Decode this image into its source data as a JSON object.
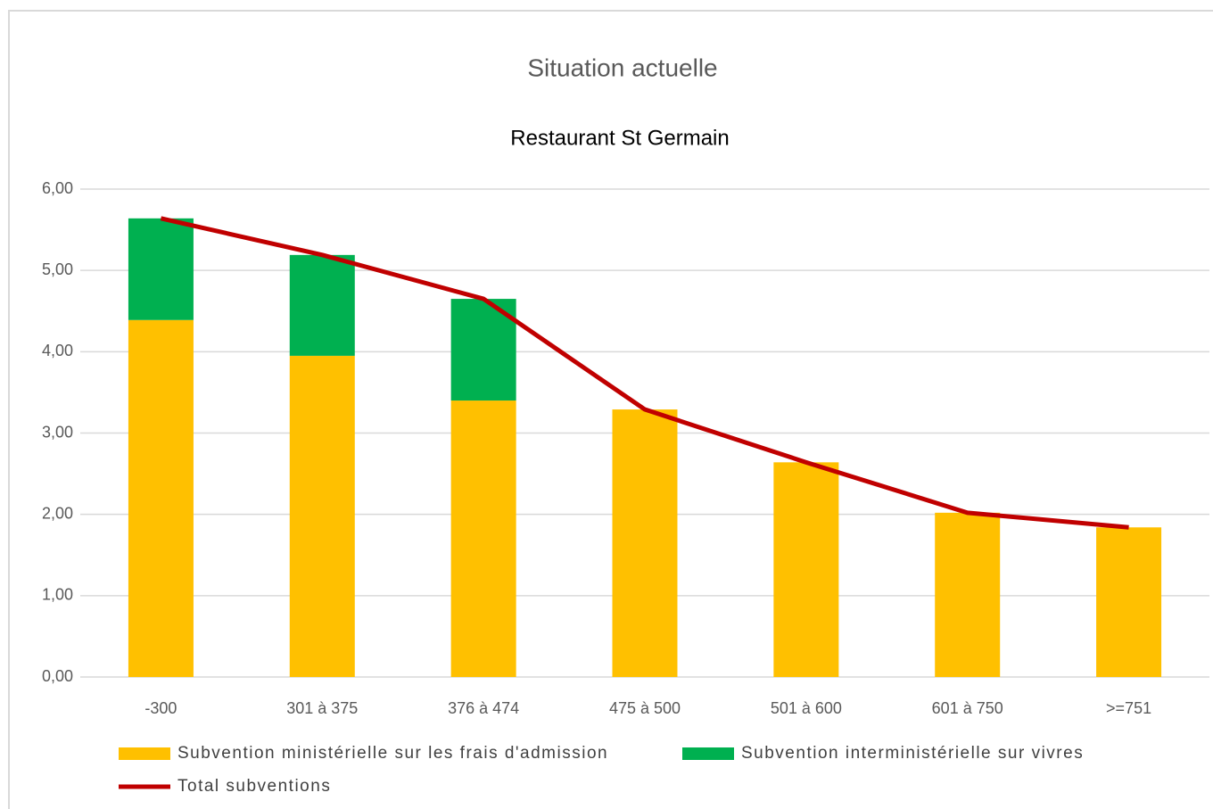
{
  "chart_data": {
    "type": "bar",
    "stacked": true,
    "title": "Situation actuelle",
    "subtitle": "Restaurant St Germain",
    "categories": [
      "-300",
      "301 à 375",
      "376 à 474",
      "475 à 500",
      "501 à 600",
      "601 à 750",
      ">=751"
    ],
    "series": [
      {
        "name": "Subvention ministérielle sur les frais d'admission",
        "type": "bar",
        "color": "#FFC000",
        "values": [
          4.39,
          3.95,
          3.4,
          3.29,
          2.64,
          2.02,
          1.84
        ]
      },
      {
        "name": "Subvention interministérielle sur vivres",
        "type": "bar",
        "color": "#00B050",
        "values": [
          1.25,
          1.24,
          1.25,
          0,
          0,
          0,
          0
        ]
      },
      {
        "name": "Total subventions",
        "type": "line",
        "color": "#C00000",
        "values": [
          5.64,
          5.19,
          4.65,
          3.29,
          2.64,
          2.02,
          1.84
        ]
      }
    ],
    "ylim": [
      0,
      6
    ],
    "yticks": [
      {
        "value": 0,
        "label": "0,00"
      },
      {
        "value": 1,
        "label": "1,00"
      },
      {
        "value": 2,
        "label": "2,00"
      },
      {
        "value": 3,
        "label": "3,00"
      },
      {
        "value": 4,
        "label": "4,00"
      },
      {
        "value": 5,
        "label": "5,00"
      },
      {
        "value": 6,
        "label": "6,00"
      }
    ],
    "grid": true,
    "legend": "bottom"
  }
}
